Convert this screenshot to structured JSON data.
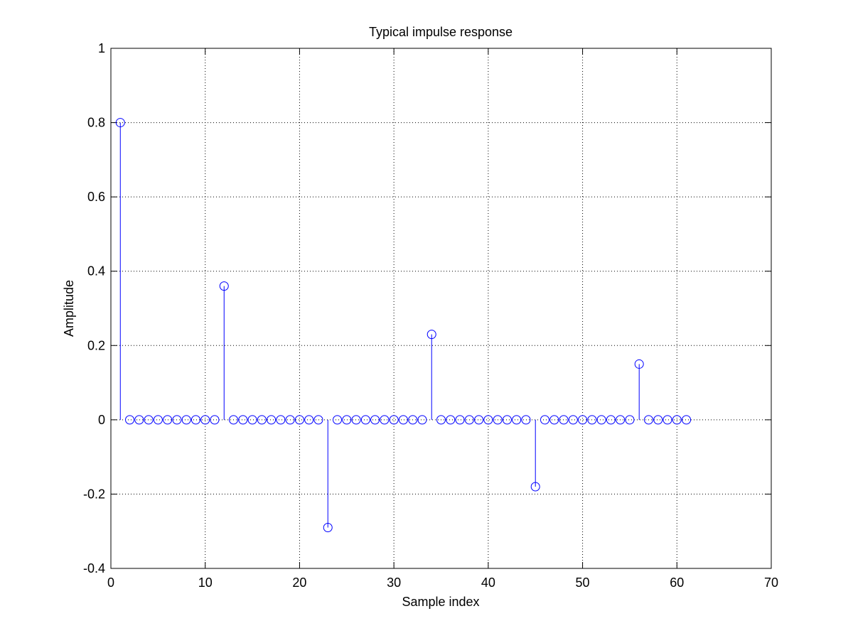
{
  "chart_data": {
    "type": "stem",
    "title": "Typical impulse response",
    "x_label": "Sample index",
    "y_label": "Amplitude",
    "x": [
      1,
      2,
      3,
      4,
      5,
      6,
      7,
      8,
      9,
      10,
      11,
      12,
      13,
      14,
      15,
      16,
      17,
      18,
      19,
      20,
      21,
      22,
      23,
      24,
      25,
      26,
      27,
      28,
      29,
      30,
      31,
      32,
      33,
      34,
      35,
      36,
      37,
      38,
      39,
      40,
      41,
      42,
      43,
      44,
      45,
      46,
      47,
      48,
      49,
      50,
      51,
      52,
      53,
      54,
      55,
      56,
      57,
      58,
      59,
      60,
      61
    ],
    "values": [
      0.8,
      0,
      0,
      0,
      0,
      0,
      0,
      0,
      0,
      0,
      0,
      0.36,
      0,
      0,
      0,
      0,
      0,
      0,
      0,
      0,
      0,
      0,
      -0.29,
      0,
      0,
      0,
      0,
      0,
      0,
      0,
      0,
      0,
      0,
      0.23,
      0,
      0,
      0,
      0,
      0,
      0,
      0,
      0,
      0,
      0,
      -0.18,
      0,
      0,
      0,
      0,
      0,
      0,
      0,
      0,
      0,
      0,
      0.15,
      0,
      0,
      0,
      0,
      0
    ],
    "color": "#0000ff",
    "xlim": [
      0,
      70
    ],
    "xticks": [
      0,
      10,
      20,
      30,
      40,
      50,
      60,
      70
    ],
    "ylim": [
      -0.4,
      1
    ],
    "yticks": [
      -0.4,
      -0.2,
      0,
      0.2,
      0.4,
      0.6,
      0.8,
      1
    ],
    "grid": true
  }
}
